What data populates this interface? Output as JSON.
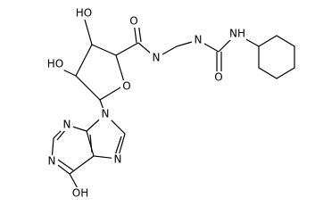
{
  "atoms": [
    {
      "label": "HO"
    },
    {
      "label": "HO"
    },
    {
      "label": "O"
    },
    {
      "label": "O"
    },
    {
      "label": "N"
    },
    {
      "label": "N"
    },
    {
      "label": "NH"
    },
    {
      "label": "O"
    },
    {
      "label": "N"
    },
    {
      "label": "N"
    },
    {
      "label": "N"
    },
    {
      "label": "N"
    },
    {
      "label": "OH"
    }
  ]
}
